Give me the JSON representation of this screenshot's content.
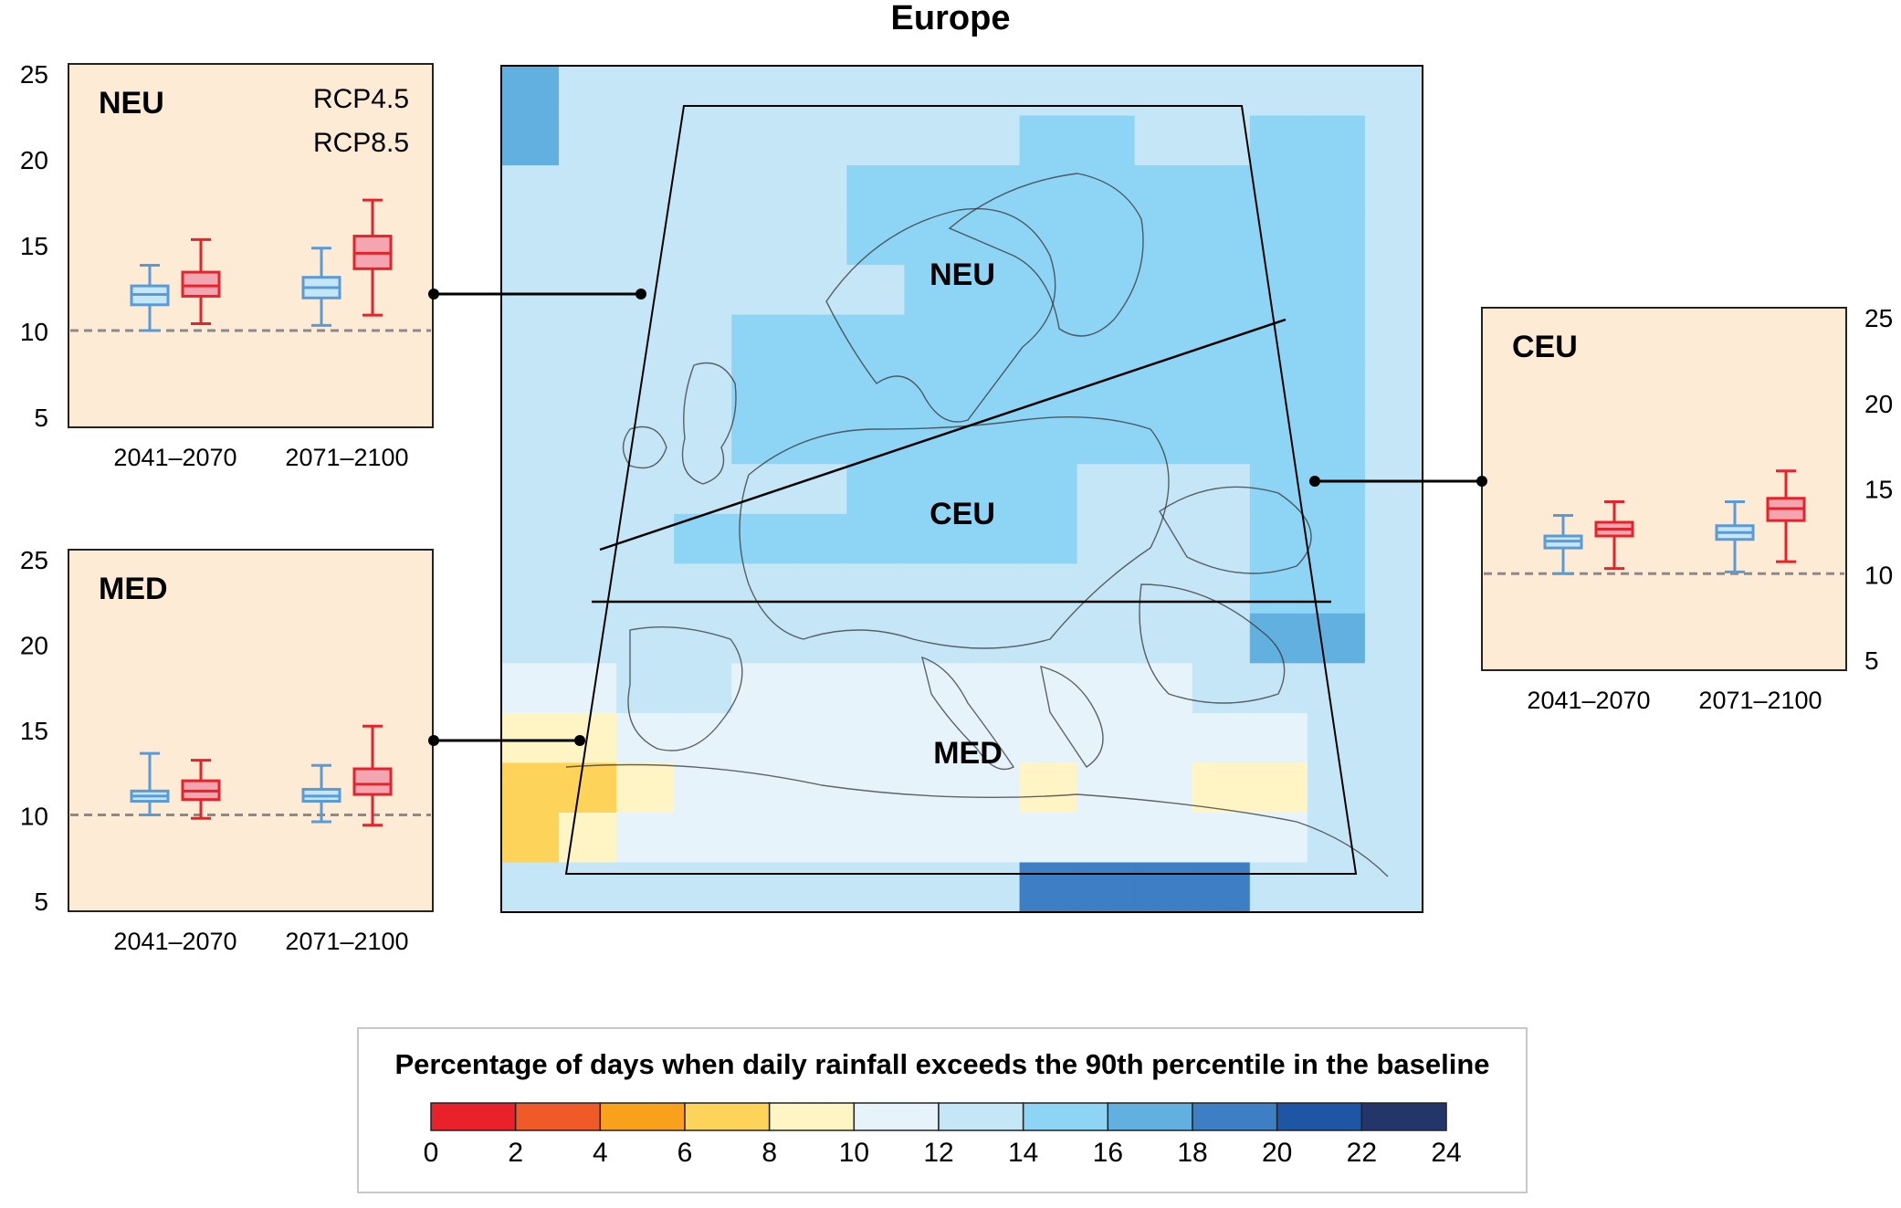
{
  "title": "Europe",
  "legend": {
    "rcp45_label": "RCP4.5",
    "rcp85_label": "RCP8.5",
    "rcp45_color": "#5b9bd5",
    "rcp85_color": "#e8222a"
  },
  "map": {
    "region_labels": [
      "NEU",
      "CEU",
      "MED"
    ]
  },
  "colorbar": {
    "title": "Percentage of days when daily rainfall exceeds the 90th percentile in the baseline",
    "ticks": [
      "0",
      "2",
      "4",
      "6",
      "8",
      "10",
      "12",
      "14",
      "16",
      "18",
      "20",
      "22",
      "24"
    ],
    "colors": [
      "#e8212b",
      "#f05a28",
      "#f9a11b",
      "#fed35a",
      "#fff5c4",
      "#e6f3fb",
      "#c5e6f7",
      "#8dd4f5",
      "#62b0e0",
      "#3d7ec4",
      "#1f55a5",
      "#243669"
    ]
  },
  "chart_data": [
    {
      "type": "boxplot",
      "region": "NEU",
      "categories": [
        "2041–2070",
        "2071–2100"
      ],
      "yticks": [
        "5",
        "10",
        "15",
        "20",
        "25"
      ],
      "ylim": [
        5,
        25
      ],
      "baseline": 10,
      "series": [
        {
          "name": "RCP4.5",
          "boxes": [
            {
              "whisker_low": 10.0,
              "q1": 11.5,
              "median": 12.1,
              "q3": 12.6,
              "whisker_high": 13.8
            },
            {
              "whisker_low": 10.3,
              "q1": 11.9,
              "median": 12.5,
              "q3": 13.1,
              "whisker_high": 14.8
            }
          ]
        },
        {
          "name": "RCP8.5",
          "boxes": [
            {
              "whisker_low": 10.4,
              "q1": 12.0,
              "median": 12.6,
              "q3": 13.4,
              "whisker_high": 15.3
            },
            {
              "whisker_low": 10.9,
              "q1": 13.6,
              "median": 14.5,
              "q3": 15.5,
              "whisker_high": 17.6
            }
          ]
        }
      ]
    },
    {
      "type": "boxplot",
      "region": "MED",
      "categories": [
        "2041–2070",
        "2071–2100"
      ],
      "yticks": [
        "5",
        "10",
        "15",
        "20",
        "25"
      ],
      "ylim": [
        5,
        25
      ],
      "baseline": 10,
      "series": [
        {
          "name": "RCP4.5",
          "boxes": [
            {
              "whisker_low": 10.0,
              "q1": 10.8,
              "median": 11.1,
              "q3": 11.4,
              "whisker_high": 13.6
            },
            {
              "whisker_low": 9.6,
              "q1": 10.8,
              "median": 11.1,
              "q3": 11.5,
              "whisker_high": 12.9
            }
          ]
        },
        {
          "name": "RCP8.5",
          "boxes": [
            {
              "whisker_low": 9.8,
              "q1": 10.9,
              "median": 11.4,
              "q3": 12.0,
              "whisker_high": 13.2
            },
            {
              "whisker_low": 9.4,
              "q1": 11.2,
              "median": 11.8,
              "q3": 12.7,
              "whisker_high": 15.2
            }
          ]
        }
      ]
    },
    {
      "type": "boxplot",
      "region": "CEU",
      "categories": [
        "2041–2070",
        "2071–2100"
      ],
      "yticks": [
        "5",
        "10",
        "15",
        "20",
        "25"
      ],
      "ylim": [
        5,
        25
      ],
      "baseline": 10,
      "series": [
        {
          "name": "RCP4.5",
          "boxes": [
            {
              "whisker_low": 10.0,
              "q1": 11.5,
              "median": 11.9,
              "q3": 12.2,
              "whisker_high": 13.4
            },
            {
              "whisker_low": 10.1,
              "q1": 12.0,
              "median": 12.4,
              "q3": 12.8,
              "whisker_high": 14.2
            }
          ]
        },
        {
          "name": "RCP8.5",
          "boxes": [
            {
              "whisker_low": 10.3,
              "q1": 12.2,
              "median": 12.6,
              "q3": 13.0,
              "whisker_high": 14.2
            },
            {
              "whisker_low": 10.7,
              "q1": 13.1,
              "median": 13.8,
              "q3": 14.4,
              "whisker_high": 16.0
            }
          ]
        }
      ]
    }
  ]
}
